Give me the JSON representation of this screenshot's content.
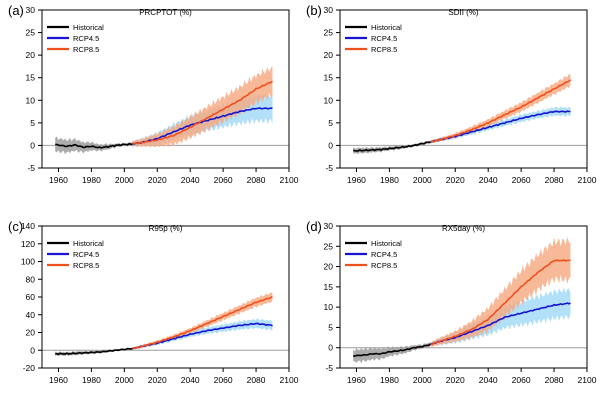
{
  "legend_labels": [
    "Historical",
    "RCP4.5",
    "RCP8.5"
  ],
  "colors": {
    "historical": "#000000",
    "historical_band": "#9e9e9e",
    "rcp45": "#1414d2",
    "rcp45_band": "#9fd8f6",
    "rcp85": "#f0501e",
    "rcp85_band": "#f6a880",
    "zero_line": "#9e9e9e"
  },
  "chart_data": [
    {
      "type": "line",
      "panel_label": "(a)",
      "title": "PRCPTOT (%)",
      "xlabel": "",
      "ylabel": "",
      "xlim": [
        1950,
        2100
      ],
      "ylim": [
        -5,
        30
      ],
      "x_ticks": [
        1960,
        1980,
        2000,
        2020,
        2040,
        2060,
        2080,
        2100
      ],
      "y_ticks": [
        -5,
        0,
        5,
        10,
        15,
        20,
        25,
        30
      ],
      "legend": "top-left",
      "series": [
        {
          "name": "Historical",
          "x": [
            1958,
            1965,
            1970,
            1975,
            1980,
            1985,
            1990,
            1995,
            2000,
            2005
          ],
          "values": [
            0.2,
            -0.2,
            0.1,
            -0.4,
            -0.2,
            -0.5,
            -0.3,
            0,
            0.2,
            0.3
          ],
          "band_half_width": [
            1.5,
            1.4,
            1.3,
            1.1,
            0.9,
            0.7,
            0.6,
            0.4,
            0.3,
            0.4
          ]
        },
        {
          "name": "RCP4.5",
          "x": [
            2005,
            2010,
            2020,
            2030,
            2040,
            2050,
            2060,
            2070,
            2080,
            2090
          ],
          "values": [
            0.4,
            0.6,
            1.5,
            3,
            4.5,
            5.5,
            6.5,
            7.5,
            8.2,
            8.2
          ],
          "band_half_width": [
            0.6,
            0.8,
            1.3,
            1.7,
            2,
            2.2,
            2.4,
            2.6,
            2.8,
            2.8
          ]
        },
        {
          "name": "RCP8.5",
          "x": [
            2005,
            2010,
            2020,
            2030,
            2040,
            2050,
            2060,
            2070,
            2080,
            2090
          ],
          "values": [
            0.4,
            0.6,
            1.2,
            2.2,
            4,
            6,
            8,
            10,
            12.5,
            14.2
          ],
          "band_half_width": [
            0.6,
            0.8,
            1.4,
            2,
            2.3,
            2.5,
            2.7,
            2.9,
            3,
            3
          ]
        }
      ]
    },
    {
      "type": "line",
      "panel_label": "(b)",
      "title": "SDII (%)",
      "xlabel": "",
      "ylabel": "",
      "xlim": [
        1950,
        2100
      ],
      "ylim": [
        -5,
        30
      ],
      "x_ticks": [
        1960,
        1980,
        2000,
        2020,
        2040,
        2060,
        2080,
        2100
      ],
      "y_ticks": [
        -5,
        0,
        5,
        10,
        15,
        20,
        25,
        30
      ],
      "legend": "top-left",
      "series": [
        {
          "name": "Historical",
          "x": [
            1958,
            1965,
            1970,
            1975,
            1980,
            1985,
            1990,
            1995,
            2000,
            2005
          ],
          "values": [
            -1.2,
            -1.1,
            -1,
            -0.9,
            -0.7,
            -0.5,
            -0.3,
            0,
            0.4,
            0.8
          ],
          "band_half_width": [
            0.6,
            0.6,
            0.5,
            0.5,
            0.4,
            0.4,
            0.3,
            0.3,
            0.3,
            0.3
          ]
        },
        {
          "name": "RCP4.5",
          "x": [
            2005,
            2010,
            2020,
            2030,
            2040,
            2050,
            2060,
            2070,
            2080,
            2090
          ],
          "values": [
            0.8,
            1.2,
            2,
            3,
            4,
            5,
            6,
            6.8,
            7.5,
            7.5
          ],
          "band_half_width": [
            0.3,
            0.4,
            0.5,
            0.6,
            0.6,
            0.7,
            0.8,
            0.8,
            0.9,
            0.9
          ]
        },
        {
          "name": "RCP8.5",
          "x": [
            2005,
            2010,
            2020,
            2030,
            2040,
            2050,
            2060,
            2070,
            2080,
            2090
          ],
          "values": [
            0.8,
            1.2,
            2.2,
            3.5,
            5,
            6.8,
            8.5,
            10.5,
            12.5,
            14.5
          ],
          "band_half_width": [
            0.3,
            0.4,
            0.5,
            0.7,
            0.8,
            0.9,
            1,
            1.1,
            1.2,
            1.3
          ]
        }
      ]
    },
    {
      "type": "line",
      "panel_label": "(c)",
      "title": "R95p (%)",
      "xlabel": "",
      "ylabel": "",
      "xlim": [
        1950,
        2100
      ],
      "ylim": [
        -20,
        140
      ],
      "x_ticks": [
        1960,
        1980,
        2000,
        2020,
        2040,
        2060,
        2080,
        2100
      ],
      "y_ticks": [
        -20,
        0,
        20,
        40,
        60,
        80,
        100,
        120,
        140
      ],
      "legend": "top-left",
      "series": [
        {
          "name": "Historical",
          "x": [
            1958,
            1965,
            1970,
            1975,
            1980,
            1985,
            1990,
            1995,
            2000,
            2005
          ],
          "values": [
            -4,
            -4,
            -3.5,
            -3,
            -2.5,
            -2,
            -1,
            0,
            1,
            2
          ],
          "band_half_width": [
            2,
            2,
            2,
            1.8,
            1.6,
            1.5,
            1.3,
            1.2,
            1,
            1
          ]
        },
        {
          "name": "RCP4.5",
          "x": [
            2005,
            2010,
            2020,
            2030,
            2040,
            2050,
            2060,
            2070,
            2080,
            2090
          ],
          "values": [
            2,
            4,
            8,
            13,
            18,
            22,
            25,
            28,
            30,
            28
          ],
          "band_half_width": [
            1,
            1.5,
            2,
            2.5,
            3,
            3.5,
            4,
            4.5,
            5,
            5
          ]
        },
        {
          "name": "RCP8.5",
          "x": [
            2005,
            2010,
            2020,
            2030,
            2040,
            2050,
            2060,
            2070,
            2080,
            2090
          ],
          "values": [
            2,
            4,
            9,
            15,
            22,
            30,
            38,
            46,
            54,
            60
          ],
          "band_half_width": [
            1,
            1.5,
            2,
            2.5,
            3,
            3.5,
            4,
            4.5,
            5,
            5
          ]
        }
      ]
    },
    {
      "type": "line",
      "panel_label": "(d)",
      "title": "RX5day (%)",
      "xlabel": "",
      "ylabel": "",
      "xlim": [
        1950,
        2100
      ],
      "ylim": [
        -5,
        30
      ],
      "x_ticks": [
        1960,
        1980,
        2000,
        2020,
        2040,
        2060,
        2080,
        2100
      ],
      "y_ticks": [
        -5,
        0,
        5,
        10,
        15,
        20,
        25,
        30
      ],
      "legend": "top-left",
      "series": [
        {
          "name": "Historical",
          "x": [
            1958,
            1965,
            1970,
            1975,
            1980,
            1985,
            1990,
            1995,
            2000,
            2005
          ],
          "values": [
            -2,
            -1.8,
            -1.5,
            -1.5,
            -1,
            -0.8,
            -0.5,
            0,
            0.3,
            0.8
          ],
          "band_half_width": [
            1.5,
            1.5,
            1.4,
            1.3,
            1.1,
            0.9,
            0.8,
            0.6,
            0.5,
            0.5
          ]
        },
        {
          "name": "RCP4.5",
          "x": [
            2005,
            2010,
            2020,
            2030,
            2040,
            2050,
            2060,
            2070,
            2080,
            2090
          ],
          "values": [
            0.8,
            1.5,
            2.5,
            4,
            5.5,
            7.5,
            8.5,
            9.5,
            10.5,
            11
          ],
          "band_half_width": [
            0.5,
            0.8,
            1.3,
            1.8,
            2.3,
            2.6,
            2.9,
            3.1,
            3.3,
            3.3
          ]
        },
        {
          "name": "RCP8.5",
          "x": [
            2005,
            2010,
            2020,
            2030,
            2040,
            2050,
            2060,
            2070,
            2080,
            2090
          ],
          "values": [
            0.8,
            1.5,
            2.8,
            4.5,
            7,
            11,
            15,
            18.5,
            21.5,
            21.5
          ],
          "band_half_width": [
            0.5,
            0.8,
            1.3,
            2,
            2.8,
            3.4,
            3.9,
            4.3,
            4.6,
            4.8
          ]
        }
      ]
    }
  ]
}
